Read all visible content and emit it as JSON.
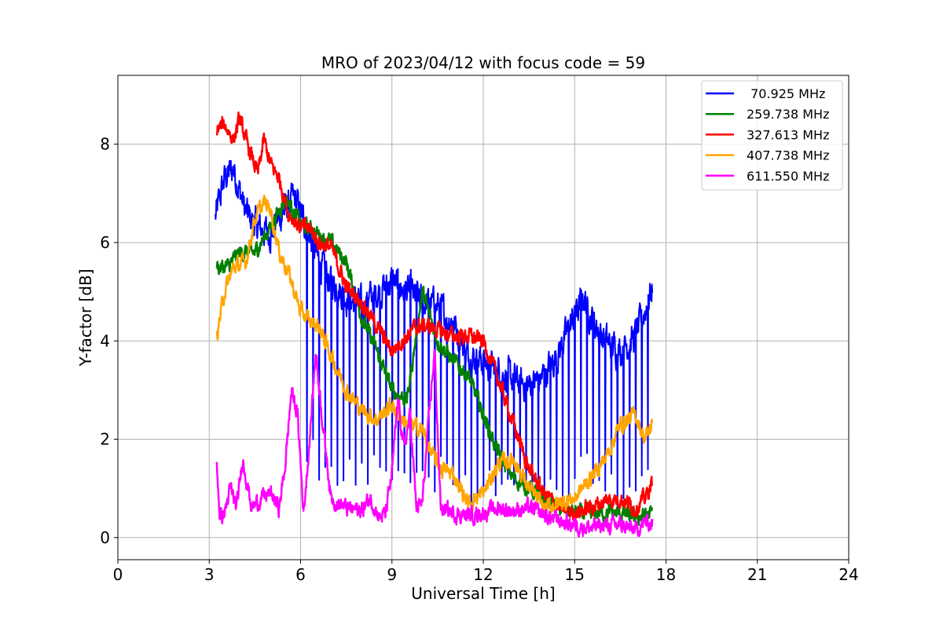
{
  "chart_data": {
    "type": "line",
    "title": "MRO of 2023/04/12 with focus code = 59",
    "xlabel": "Universal Time [h]",
    "ylabel": "Y-factor [dB]",
    "xlim": [
      0,
      24
    ],
    "ylim": [
      -0.45,
      9.4
    ],
    "xticks": [
      0,
      3,
      6,
      9,
      12,
      15,
      18,
      21,
      24
    ],
    "xtick_labels": [
      "0",
      "3",
      "6",
      "9",
      "12",
      "15",
      "18",
      "21",
      "24"
    ],
    "yticks": [
      0,
      2,
      4,
      6,
      8
    ],
    "ytick_labels": [
      "0",
      "2",
      "4",
      "6",
      "8"
    ],
    "grid": true,
    "legend_position": "top-right",
    "series": [
      {
        "name": " 70.925 MHz",
        "color": "#0000ff",
        "spiky": true,
        "x": [
          3.2,
          3.5,
          3.8,
          4.2,
          4.6,
          5.0,
          5.4,
          5.8,
          6.2,
          6.6,
          7.0,
          7.5,
          8.0,
          8.5,
          9.0,
          9.5,
          10.0,
          10.5,
          11.0,
          11.5,
          12.0,
          12.5,
          13.0,
          13.5,
          14.0,
          14.5,
          15.0,
          15.3,
          15.6,
          16.0,
          16.5,
          17.0,
          17.3,
          17.55
        ],
        "y": [
          6.5,
          7.3,
          7.5,
          6.6,
          6.3,
          6.2,
          6.6,
          6.9,
          6.3,
          5.6,
          5.2,
          4.9,
          4.7,
          5.0,
          5.2,
          5.0,
          4.8,
          4.7,
          4.4,
          3.7,
          3.6,
          3.4,
          3.2,
          3.1,
          3.3,
          3.8,
          4.5,
          4.9,
          4.4,
          4.0,
          3.8,
          4.1,
          4.6,
          5.1
        ]
      },
      {
        "name": "259.738 MHz",
        "color": "#008000",
        "spiky": false,
        "x": [
          3.25,
          3.6,
          4.0,
          4.5,
          5.0,
          5.5,
          6.0,
          6.5,
          7.0,
          7.5,
          8.0,
          8.5,
          9.0,
          9.5,
          10.0,
          10.5,
          11.0,
          11.5,
          12.0,
          12.5,
          13.0,
          13.5,
          14.0,
          14.5,
          15.0,
          15.5,
          16.0,
          16.5,
          17.0,
          17.55
        ],
        "y": [
          5.5,
          5.5,
          5.8,
          5.8,
          6.3,
          6.9,
          6.4,
          6.2,
          6.0,
          5.6,
          4.5,
          3.8,
          3.0,
          2.8,
          5.0,
          4.0,
          3.6,
          3.3,
          2.5,
          1.7,
          1.2,
          1.0,
          0.8,
          0.6,
          0.5,
          0.5,
          0.5,
          0.5,
          0.4,
          0.5
        ]
      },
      {
        "name": "327.613 MHz",
        "color": "#ff0000",
        "spiky": false,
        "x": [
          3.25,
          3.5,
          3.8,
          4.0,
          4.3,
          4.6,
          4.8,
          5.0,
          5.3,
          5.6,
          6.0,
          6.3,
          6.6,
          7.0,
          7.5,
          8.0,
          8.5,
          9.0,
          9.5,
          9.8,
          10.2,
          10.6,
          11.0,
          11.5,
          12.0,
          12.5,
          13.0,
          13.5,
          14.0,
          14.5,
          15.0,
          15.5,
          16.0,
          16.5,
          17.0,
          17.3,
          17.55
        ],
        "y": [
          8.3,
          8.4,
          8.1,
          8.5,
          7.9,
          7.4,
          8.1,
          7.6,
          7.3,
          6.6,
          6.3,
          6.3,
          6.0,
          5.9,
          5.1,
          4.8,
          4.3,
          3.8,
          4.1,
          4.3,
          4.3,
          4.2,
          4.1,
          4.1,
          4.0,
          3.2,
          2.3,
          1.4,
          0.9,
          0.6,
          0.5,
          0.6,
          0.75,
          0.8,
          0.6,
          0.8,
          1.1
        ]
      },
      {
        "name": "407.738 MHz",
        "color": "#ffa500",
        "spiky": false,
        "x": [
          3.25,
          3.5,
          3.8,
          4.2,
          4.5,
          4.8,
          5.0,
          5.3,
          5.6,
          6.0,
          6.3,
          6.6,
          7.0,
          7.5,
          8.0,
          8.5,
          9.0,
          9.5,
          10.0,
          10.3,
          10.6,
          11.0,
          11.5,
          12.0,
          12.5,
          13.0,
          13.5,
          14.0,
          14.5,
          15.0,
          15.5,
          16.0,
          16.5,
          17.0,
          17.3,
          17.55
        ],
        "y": [
          4.1,
          5.0,
          5.5,
          5.6,
          6.5,
          6.8,
          6.7,
          5.8,
          5.4,
          4.6,
          4.4,
          4.3,
          3.7,
          3.0,
          2.6,
          2.4,
          2.7,
          2.3,
          2.2,
          1.7,
          1.4,
          1.3,
          0.7,
          0.9,
          1.5,
          1.6,
          1.0,
          0.6,
          0.7,
          0.8,
          1.2,
          1.6,
          2.3,
          2.5,
          2.0,
          2.3
        ]
      },
      {
        "name": "611.550 MHz",
        "color": "#ff00ff",
        "spiky": false,
        "x": [
          3.25,
          3.35,
          3.5,
          3.7,
          3.9,
          4.1,
          4.4,
          4.7,
          5.0,
          5.3,
          5.5,
          5.7,
          5.9,
          6.1,
          6.3,
          6.5,
          6.7,
          7.0,
          7.5,
          8.0,
          8.3,
          8.6,
          8.8,
          9.0,
          9.2,
          9.4,
          9.6,
          9.8,
          10.0,
          10.2,
          10.4,
          10.6,
          11.0,
          11.5,
          12.0,
          12.5,
          13.0,
          13.5,
          14.0,
          14.5,
          15.0,
          15.5,
          16.0,
          16.5,
          17.0,
          17.3,
          17.55
        ],
        "y": [
          1.5,
          0.4,
          0.5,
          1.0,
          0.6,
          1.6,
          0.6,
          0.8,
          0.9,
          0.6,
          1.5,
          3.0,
          2.5,
          0.5,
          2.0,
          3.8,
          2.5,
          0.8,
          0.6,
          0.55,
          0.8,
          0.4,
          0.5,
          1.3,
          2.8,
          1.8,
          2.5,
          0.6,
          0.7,
          2.3,
          3.8,
          0.6,
          0.5,
          0.45,
          0.5,
          0.6,
          0.55,
          0.6,
          0.45,
          0.35,
          0.25,
          0.2,
          0.25,
          0.25,
          0.15,
          0.3,
          0.3
        ]
      }
    ]
  }
}
